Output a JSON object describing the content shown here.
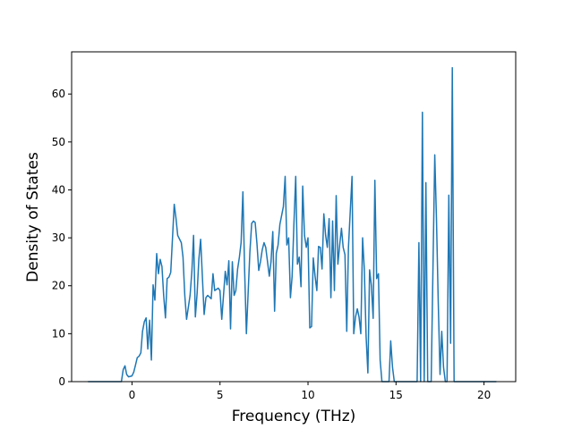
{
  "chart_data": {
    "type": "line",
    "title": "",
    "xlabel": "Frequency (THz)",
    "ylabel": "Density of States",
    "xlim": [
      -3.43,
      21.8
    ],
    "ylim": [
      0,
      68.8
    ],
    "x_ticks": [
      0,
      5,
      10,
      15,
      20
    ],
    "y_ticks": [
      0,
      10,
      20,
      30,
      40,
      50,
      60
    ],
    "grid": false,
    "legend": "none",
    "line_color": "#1f77b4",
    "series": [
      {
        "x": [
          -2.5,
          -0.6,
          -0.5,
          -0.4,
          -0.3,
          -0.2,
          0,
          0.1,
          0.2,
          0.3,
          0.4,
          0.5,
          0.6,
          0.7,
          0.8,
          0.9,
          1.0,
          1.1,
          1.2,
          1.3,
          1.4,
          1.5,
          1.6,
          1.7,
          1.8,
          1.9,
          2.0,
          2.1,
          2.2,
          2.4,
          2.5,
          2.6,
          2.8,
          2.9,
          3.0,
          3.1,
          3.3,
          3.4,
          3.5,
          3.6,
          3.7,
          3.8,
          3.9,
          4.1,
          4.2,
          4.3,
          4.5,
          4.6,
          4.7,
          4.9,
          5.0,
          5.1,
          5.3,
          5.4,
          5.5,
          5.6,
          5.7,
          5.8,
          5.9,
          6.0,
          6.1,
          6.2,
          6.3,
          6.4,
          6.5,
          6.7,
          6.8,
          6.9,
          7.0,
          7.1,
          7.2,
          7.3,
          7.4,
          7.5,
          7.6,
          7.8,
          7.9,
          8.0,
          8.1,
          8.2,
          8.3,
          8.4,
          8.6,
          8.7,
          8.8,
          8.9,
          9.0,
          9.1,
          9.2,
          9.3,
          9.4,
          9.5,
          9.6,
          9.7,
          9.8,
          9.9,
          10.0,
          10.1,
          10.2,
          10.3,
          10.4,
          10.5,
          10.6,
          10.7,
          10.8,
          10.9,
          11.0,
          11.1,
          11.2,
          11.3,
          11.4,
          11.5,
          11.6,
          11.7,
          11.8,
          11.9,
          12.0,
          12.1,
          12.2,
          12.3,
          12.4,
          12.5,
          12.6,
          12.7,
          12.8,
          12.9,
          13.0,
          13.1,
          13.2,
          13.3,
          13.4,
          13.5,
          13.6,
          13.7,
          13.8,
          13.9,
          14.0,
          14.1,
          14.2,
          14.3,
          14.4,
          14.5,
          14.6,
          14.7,
          14.8,
          14.9,
          15.0,
          15.1,
          15.2,
          15.3,
          15.4,
          15.5,
          15.6,
          15.7,
          16.0,
          16.2,
          16.3,
          16.4,
          16.5,
          16.6,
          16.7,
          16.8,
          16.9,
          17.0,
          17.2,
          17.3,
          17.4,
          17.5,
          17.6,
          17.7,
          17.8,
          17.9,
          18.0,
          18.1,
          18.2,
          18.3,
          18.4,
          18.5,
          18.6,
          18.7,
          20.7
        ],
        "y": [
          0,
          0,
          2.5,
          3.3,
          1.5,
          1.0,
          1.2,
          2.0,
          3.5,
          5.0,
          5.3,
          6.0,
          10.5,
          12.5,
          13.3,
          6.8,
          12.8,
          4.5,
          20.2,
          17.0,
          26.7,
          22.5,
          25.5,
          24.0,
          18.0,
          13.3,
          21.5,
          21.8,
          22.8,
          37.0,
          34.0,
          30.5,
          29.0,
          26.0,
          18.0,
          13.0,
          18.0,
          23.0,
          30.5,
          13.5,
          18.5,
          25.5,
          29.7,
          14.0,
          17.5,
          18.0,
          17.3,
          22.5,
          19.0,
          19.5,
          19.0,
          13.0,
          23.0,
          20.2,
          25.2,
          11.0,
          25.0,
          18.0,
          19.0,
          23.5,
          26.0,
          29.0,
          39.6,
          23.5,
          10.0,
          27.0,
          33.0,
          33.5,
          33.2,
          28.8,
          23.2,
          25.0,
          27.5,
          29.0,
          28.0,
          22.0,
          25.0,
          31.3,
          14.7,
          26.8,
          28.5,
          32.8,
          36.5,
          42.8,
          28.5,
          30.0,
          17.5,
          22.0,
          33.0,
          42.8,
          24.5,
          26.0,
          19.8,
          40.8,
          30.5,
          28.0,
          30.0,
          11.2,
          11.5,
          25.8,
          22.0,
          19.0,
          28.2,
          28.0,
          23.5,
          35.0,
          30.5,
          28.0,
          34.0,
          17.5,
          33.5,
          19.0,
          38.8,
          24.5,
          28.5,
          32.0,
          28.0,
          26.5,
          10.5,
          28.0,
          35.5,
          42.8,
          10.0,
          13.5,
          15.2,
          13.5,
          10.0,
          30.0,
          23.5,
          9.5,
          1.8,
          23.3,
          20.0,
          13.2,
          42.0,
          21.5,
          22.5,
          4.5,
          0,
          0,
          0,
          0,
          0,
          8.5,
          3.0,
          0,
          0,
          0,
          0,
          0,
          0,
          0,
          0,
          0,
          0,
          0,
          29.0,
          0,
          56.2,
          0,
          41.5,
          0,
          0,
          0,
          47.3,
          34.0,
          16.5,
          1.5,
          10.5,
          3.0,
          0,
          0,
          38.9,
          8.0,
          65.5,
          0,
          0,
          0,
          0,
          0,
          0
        ]
      }
    ]
  }
}
